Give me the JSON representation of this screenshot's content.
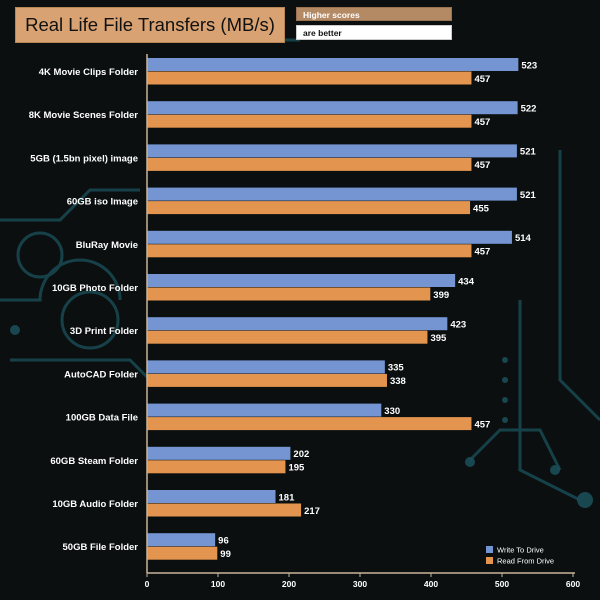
{
  "header": {
    "title": "Real Life File Transfers (MB/s)",
    "note_line1": "Higher scores",
    "note_line2": "are better"
  },
  "colors": {
    "write": "#7495d2",
    "read": "#e3944e",
    "axis": "#c9b49a",
    "label": "#ffffff"
  },
  "chart_data": {
    "type": "bar",
    "orientation": "horizontal",
    "title": "Real Life File Transfers (MB/s)",
    "categories": [
      "4K Movie Clips Folder",
      "8K Movie Scenes Folder",
      "5GB (1.5bn pixel) image",
      "60GB iso Image",
      "BluRay Movie",
      "10GB Photo Folder",
      "3D Print Folder",
      "AutoCAD Folder",
      "100GB Data File",
      "60GB Steam Folder",
      "10GB Audio Folder",
      "50GB File Folder"
    ],
    "series": [
      {
        "name": "Write To  Drive",
        "values": [
          523,
          522,
          521,
          521,
          514,
          434,
          423,
          335,
          330,
          202,
          181,
          96
        ]
      },
      {
        "name": "Read From  Drive",
        "values": [
          457,
          457,
          457,
          455,
          457,
          399,
          395,
          338,
          457,
          195,
          217,
          99
        ]
      }
    ],
    "xlim": [
      0,
      600
    ],
    "xticks": [
      0,
      100,
      200,
      300,
      400,
      500,
      600
    ],
    "grid": false,
    "legend": "bottom-right",
    "xlabel": "",
    "ylabel": ""
  }
}
